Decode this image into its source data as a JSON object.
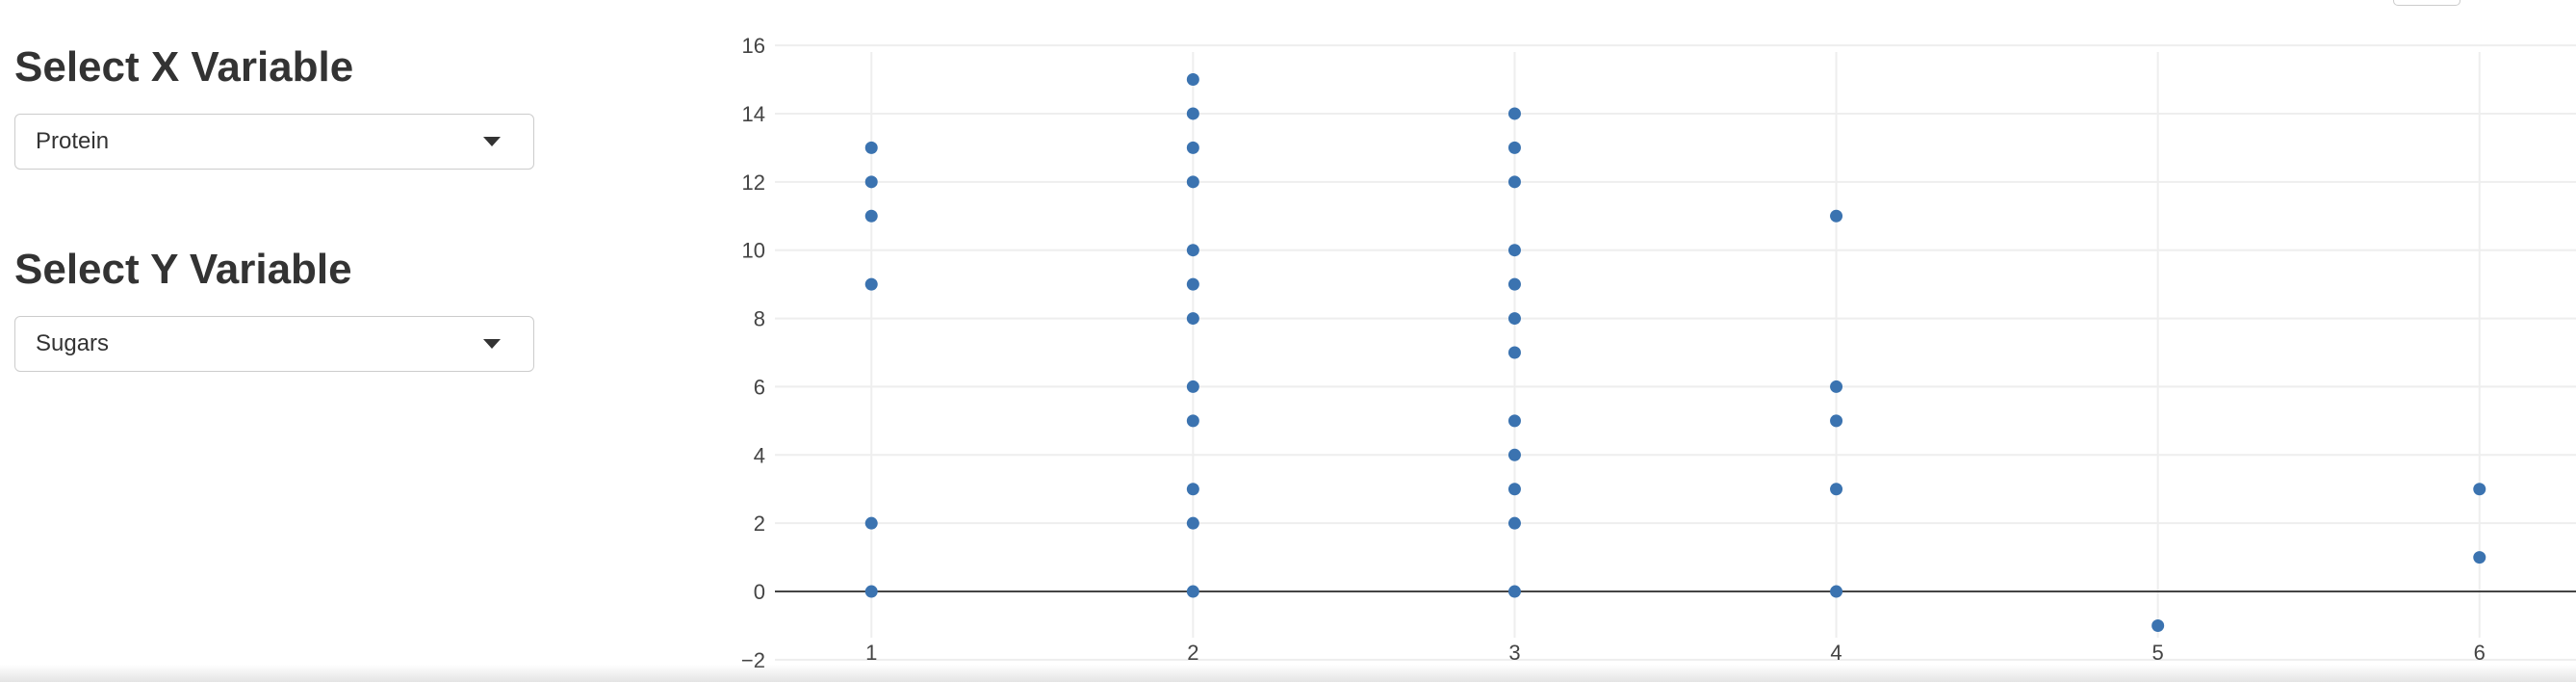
{
  "sidebar": {
    "x_heading": "Select X Variable",
    "x_selected": "Protein",
    "y_heading": "Select Y Variable",
    "y_selected": "Sugars"
  },
  "colors": {
    "marker": "#3b73b0",
    "grid": "#eeeeee",
    "zero_line": "#444444"
  },
  "chart_data": {
    "type": "scatter",
    "xlabel": "",
    "ylabel": "",
    "xlim": [
      0.7,
      6.3
    ],
    "ylim": [
      -2.2,
      16.2
    ],
    "x_ticks": [
      1,
      2,
      3,
      4,
      5,
      6
    ],
    "y_ticks": [
      -2,
      0,
      2,
      4,
      6,
      8,
      10,
      12,
      14,
      16
    ],
    "grid": true,
    "zero_line": true,
    "series": [
      {
        "points": [
          [
            1,
            13
          ],
          [
            1,
            12
          ],
          [
            1,
            11
          ],
          [
            1,
            9
          ],
          [
            1,
            2
          ],
          [
            1,
            0
          ],
          [
            2,
            15
          ],
          [
            2,
            14
          ],
          [
            2,
            13
          ],
          [
            2,
            12
          ],
          [
            2,
            10
          ],
          [
            2,
            9
          ],
          [
            2,
            8
          ],
          [
            2,
            6
          ],
          [
            2,
            5
          ],
          [
            2,
            3
          ],
          [
            2,
            2
          ],
          [
            2,
            0
          ],
          [
            3,
            14
          ],
          [
            3,
            13
          ],
          [
            3,
            12
          ],
          [
            3,
            10
          ],
          [
            3,
            9
          ],
          [
            3,
            8
          ],
          [
            3,
            7
          ],
          [
            3,
            5
          ],
          [
            3,
            4
          ],
          [
            3,
            3
          ],
          [
            3,
            2
          ],
          [
            3,
            0
          ],
          [
            4,
            11
          ],
          [
            4,
            6
          ],
          [
            4,
            5
          ],
          [
            4,
            3
          ],
          [
            4,
            0
          ],
          [
            5,
            -1
          ],
          [
            6,
            3
          ],
          [
            6,
            1
          ]
        ]
      }
    ]
  }
}
